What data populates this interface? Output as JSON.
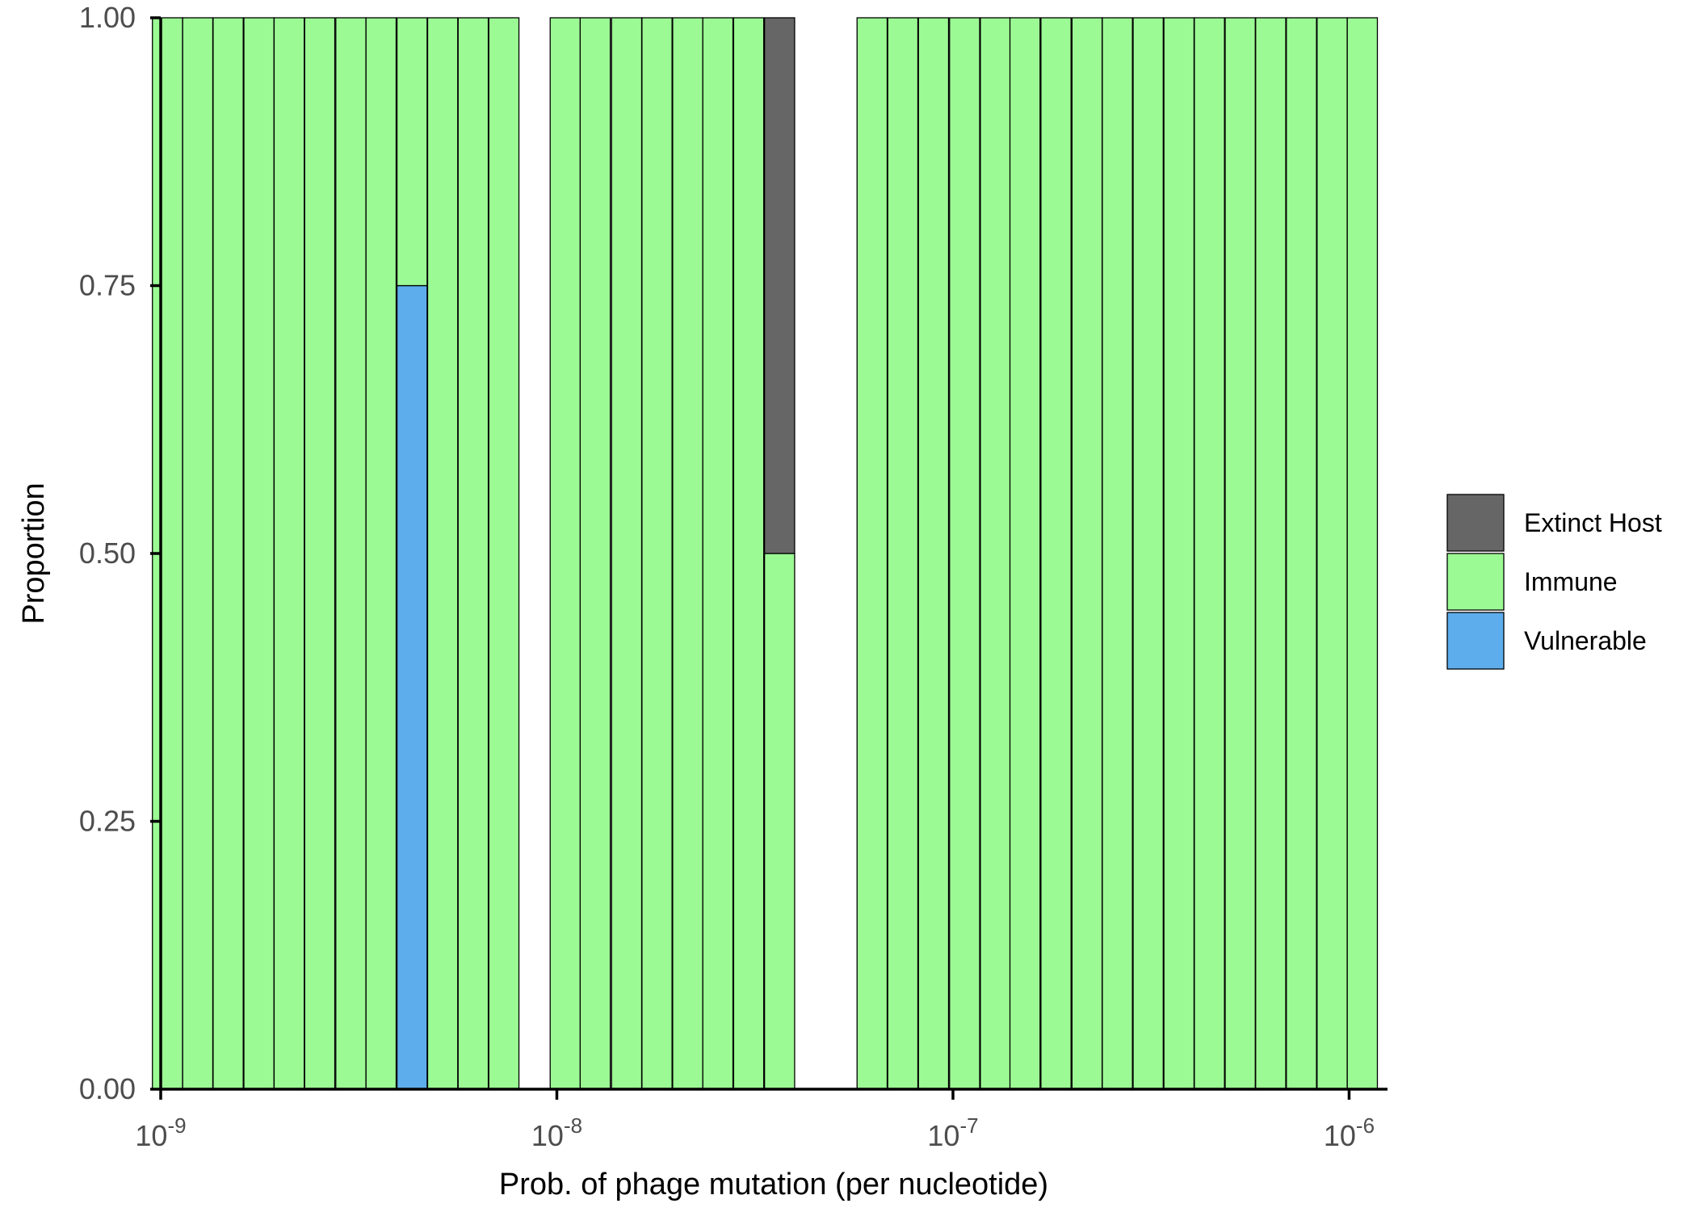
{
  "chart_data": {
    "type": "bar",
    "stacked": true,
    "x_scale": "log10",
    "xlabel": "Prob. of phage mutation (per nucleotide)",
    "ylabel": "Proportion",
    "xlim": [
      1e-09,
      1.25e-06
    ],
    "ylim": [
      0,
      1
    ],
    "x_ticks": [
      {
        "value": 1e-09,
        "base": "10",
        "exp": "-9"
      },
      {
        "value": 1e-08,
        "base": "10",
        "exp": "-8"
      },
      {
        "value": 1e-07,
        "base": "10",
        "exp": "-7"
      },
      {
        "value": 1e-06,
        "base": "10",
        "exp": "-6"
      }
    ],
    "y_ticks": [
      "0.00",
      "0.25",
      "0.50",
      "0.75",
      "1.00"
    ],
    "grid": false,
    "legend": {
      "position": "right",
      "entries": [
        {
          "key": "extinct",
          "label": "Extinct Host",
          "color": "#666666"
        },
        {
          "key": "immune",
          "label": "Immune",
          "color": "#9cfa94"
        },
        {
          "key": "vulnerable",
          "label": "Vulnerable",
          "color": "#5dadec"
        }
      ]
    },
    "stack_order": [
      "vulnerable",
      "immune",
      "extinct"
    ],
    "bars": [
      {
        "x": 1.04e-09,
        "vulnerable": 0,
        "immune": 1,
        "extinct": 0
      },
      {
        "x": 1.24e-09,
        "vulnerable": 0,
        "immune": 1,
        "extinct": 0
      },
      {
        "x": 1.48e-09,
        "vulnerable": 0,
        "immune": 1,
        "extinct": 0
      },
      {
        "x": 1.77e-09,
        "vulnerable": 0,
        "immune": 1,
        "extinct": 0
      },
      {
        "x": 2.11e-09,
        "vulnerable": 0,
        "immune": 1,
        "extinct": 0
      },
      {
        "x": 2.52e-09,
        "vulnerable": 0,
        "immune": 1,
        "extinct": 0
      },
      {
        "x": 3.02e-09,
        "vulnerable": 0,
        "immune": 1,
        "extinct": 0
      },
      {
        "x": 3.6e-09,
        "vulnerable": 0,
        "immune": 1,
        "extinct": 0
      },
      {
        "x": 4.31e-09,
        "vulnerable": 0.75,
        "immune": 0.25,
        "extinct": 0
      },
      {
        "x": 5.15e-09,
        "vulnerable": 0,
        "immune": 1,
        "extinct": 0
      },
      {
        "x": 6.15e-09,
        "vulnerable": 0,
        "immune": 1,
        "extinct": 0
      },
      {
        "x": 7.35e-09,
        "vulnerable": 0,
        "immune": 1,
        "extinct": 0
      },
      {
        "x": 1.05e-08,
        "vulnerable": 0,
        "immune": 1,
        "extinct": 0
      },
      {
        "x": 1.25e-08,
        "vulnerable": 0,
        "immune": 1,
        "extinct": 0
      },
      {
        "x": 1.5e-08,
        "vulnerable": 0,
        "immune": 1,
        "extinct": 0
      },
      {
        "x": 1.79e-08,
        "vulnerable": 0,
        "immune": 1,
        "extinct": 0
      },
      {
        "x": 2.14e-08,
        "vulnerable": 0,
        "immune": 1,
        "extinct": 0
      },
      {
        "x": 2.55e-08,
        "vulnerable": 0,
        "immune": 1,
        "extinct": 0
      },
      {
        "x": 3.05e-08,
        "vulnerable": 0,
        "immune": 1,
        "extinct": 0
      },
      {
        "x": 3.65e-08,
        "vulnerable": 0,
        "immune": 0.5,
        "extinct": 0.5
      },
      {
        "x": 6.25e-08,
        "vulnerable": 0,
        "immune": 1,
        "extinct": 0
      },
      {
        "x": 7.47e-08,
        "vulnerable": 0,
        "immune": 1,
        "extinct": 0
      },
      {
        "x": 8.93e-08,
        "vulnerable": 0,
        "immune": 1,
        "extinct": 0
      },
      {
        "x": 1.07e-07,
        "vulnerable": 0,
        "immune": 1,
        "extinct": 0
      },
      {
        "x": 1.28e-07,
        "vulnerable": 0,
        "immune": 1,
        "extinct": 0
      },
      {
        "x": 1.52e-07,
        "vulnerable": 0,
        "immune": 1,
        "extinct": 0
      },
      {
        "x": 1.82e-07,
        "vulnerable": 0,
        "immune": 1,
        "extinct": 0
      },
      {
        "x": 2.18e-07,
        "vulnerable": 0,
        "immune": 1,
        "extinct": 0
      },
      {
        "x": 2.6e-07,
        "vulnerable": 0,
        "immune": 1,
        "extinct": 0
      },
      {
        "x": 3.11e-07,
        "vulnerable": 0,
        "immune": 1,
        "extinct": 0
      },
      {
        "x": 3.72e-07,
        "vulnerable": 0,
        "immune": 1,
        "extinct": 0
      },
      {
        "x": 4.44e-07,
        "vulnerable": 0,
        "immune": 1,
        "extinct": 0
      },
      {
        "x": 5.31e-07,
        "vulnerable": 0,
        "immune": 1,
        "extinct": 0
      },
      {
        "x": 6.34e-07,
        "vulnerable": 0,
        "immune": 1,
        "extinct": 0
      },
      {
        "x": 7.58e-07,
        "vulnerable": 0,
        "immune": 1,
        "extinct": 0
      },
      {
        "x": 9.06e-07,
        "vulnerable": 0,
        "immune": 1,
        "extinct": 0
      },
      {
        "x": 1.08e-06,
        "vulnerable": 0,
        "immune": 1,
        "extinct": 0
      }
    ]
  }
}
